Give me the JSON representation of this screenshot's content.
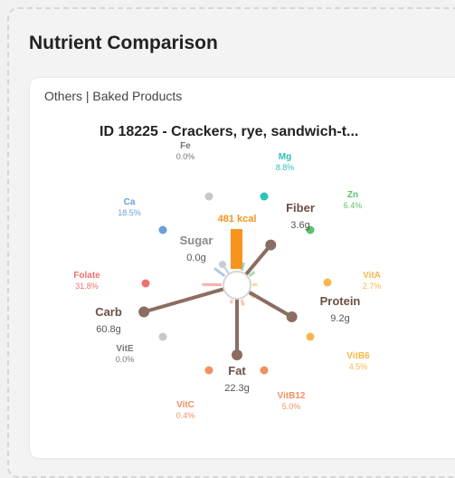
{
  "header": {
    "title": "Nutrient Comparison"
  },
  "breadcrumb": "Others | Baked Products",
  "food": {
    "title": "ID 18225 - Crackers, rye, sandwich-t..."
  },
  "energy": {
    "label": "481 kcal",
    "color": "#f7941d"
  },
  "chart_data": {
    "type": "radial",
    "macros": [
      {
        "name": "Sugar",
        "value": "0.0g",
        "amount": 0.0,
        "color": "#8c6d62"
      },
      {
        "name": "Fiber",
        "value": "3.6g",
        "amount": 3.6,
        "color": "#8c6d62"
      },
      {
        "name": "Protein",
        "value": "9.2g",
        "amount": 9.2,
        "color": "#8c6d62"
      },
      {
        "name": "Fat",
        "value": "22.3g",
        "amount": 22.3,
        "color": "#8c6d62"
      },
      {
        "name": "Carb",
        "value": "60.8g",
        "amount": 60.8,
        "color": "#8c6d62"
      }
    ],
    "micros": [
      {
        "name": "Fe",
        "value": "0.0%",
        "percent": 0.0,
        "color": "#c8c8c8"
      },
      {
        "name": "Mg",
        "value": "8.8%",
        "percent": 8.8,
        "color": "#2cc2b8"
      },
      {
        "name": "Zn",
        "value": "6.4%",
        "percent": 6.4,
        "color": "#5cc26a"
      },
      {
        "name": "VitA",
        "value": "2.7%",
        "percent": 2.7,
        "color": "#f6b84a"
      },
      {
        "name": "VitB6",
        "value": "4.5%",
        "percent": 4.5,
        "color": "#f6b84a"
      },
      {
        "name": "VitB12",
        "value": "5.0%",
        "percent": 5.0,
        "color": "#f29160"
      },
      {
        "name": "VitC",
        "value": "0.4%",
        "percent": 0.4,
        "color": "#f29160"
      },
      {
        "name": "VitE",
        "value": "0.0%",
        "percent": 0.0,
        "color": "#c8c8c8"
      },
      {
        "name": "Folate",
        "value": "31.8%",
        "percent": 31.8,
        "color": "#f07070"
      },
      {
        "name": "Ca",
        "value": "18.5%",
        "percent": 18.5,
        "color": "#6a9fd8"
      }
    ]
  }
}
